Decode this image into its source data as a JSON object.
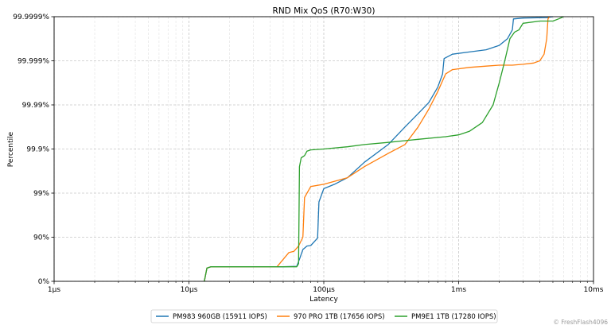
{
  "chart_data": {
    "type": "line",
    "title": "RND Mix QoS (R70:W30)",
    "xlabel": "Latency",
    "ylabel": "Percentile",
    "x_scale": "log",
    "x_unit": "seconds",
    "xlim": [
      1e-06,
      0.01
    ],
    "x_ticks": [
      {
        "value": 1e-06,
        "label": "1µs"
      },
      {
        "value": 1e-05,
        "label": "10µs"
      },
      {
        "value": 0.0001,
        "label": "100µs"
      },
      {
        "value": 0.001,
        "label": "1ms"
      },
      {
        "value": 0.01,
        "label": "10ms"
      }
    ],
    "y_scale": "nines",
    "ylim": [
      0,
      6
    ],
    "y_ticks": [
      {
        "value": 0,
        "label": "0%"
      },
      {
        "value": 1,
        "label": "90%"
      },
      {
        "value": 2,
        "label": "99%"
      },
      {
        "value": 3,
        "label": "99.9%"
      },
      {
        "value": 4,
        "label": "99.99%"
      },
      {
        "value": 5,
        "label": "99.999%"
      },
      {
        "value": 6,
        "label": "99.9999%"
      }
    ],
    "grid": true,
    "legend_position": "bottom-center",
    "series": [
      {
        "name": "PM983 960GB (15911 IOPS)",
        "color": "#1f77b4",
        "points": [
          [
            1.3e-05,
            0.0
          ],
          [
            1.36e-05,
            0.3
          ],
          [
            1.45e-05,
            0.33
          ],
          [
            2e-05,
            0.33
          ],
          [
            5e-05,
            0.33
          ],
          [
            6.3e-05,
            0.34
          ],
          [
            6.6e-05,
            0.5
          ],
          [
            7e-05,
            0.72
          ],
          [
            7.5e-05,
            0.8
          ],
          [
            8e-05,
            0.81
          ],
          [
            9e-05,
            0.98
          ],
          [
            9.2e-05,
            1.8
          ],
          [
            0.0001,
            2.1
          ],
          [
            0.00012,
            2.2
          ],
          [
            0.00015,
            2.35
          ],
          [
            0.0002,
            2.7
          ],
          [
            0.0003,
            3.1
          ],
          [
            0.0004,
            3.5
          ],
          [
            0.0005,
            3.8
          ],
          [
            0.0006,
            4.05
          ],
          [
            0.0007,
            4.4
          ],
          [
            0.00076,
            4.7
          ],
          [
            0.00078,
            5.05
          ],
          [
            0.0009,
            5.15
          ],
          [
            0.0012,
            5.2
          ],
          [
            0.0016,
            5.25
          ],
          [
            0.002,
            5.35
          ],
          [
            0.0023,
            5.5
          ],
          [
            0.0025,
            5.7
          ],
          [
            0.00255,
            5.95
          ],
          [
            0.003,
            5.97
          ],
          [
            0.0045,
            5.98
          ],
          [
            0.005,
            6.0
          ]
        ]
      },
      {
        "name": "970 PRO 1TB (17656 IOPS)",
        "color": "#ff7f0e",
        "points": [
          [
            1.3e-05,
            0.0
          ],
          [
            1.36e-05,
            0.3
          ],
          [
            1.45e-05,
            0.33
          ],
          [
            2e-05,
            0.33
          ],
          [
            4.5e-05,
            0.33
          ],
          [
            5e-05,
            0.5
          ],
          [
            5.5e-05,
            0.65
          ],
          [
            6e-05,
            0.68
          ],
          [
            6.5e-05,
            0.8
          ],
          [
            7e-05,
            1.0
          ],
          [
            7.2e-05,
            1.9
          ],
          [
            8e-05,
            2.15
          ],
          [
            0.0001,
            2.2
          ],
          [
            0.00015,
            2.35
          ],
          [
            0.0002,
            2.6
          ],
          [
            0.0003,
            2.9
          ],
          [
            0.0004,
            3.1
          ],
          [
            0.0005,
            3.5
          ],
          [
            0.0006,
            3.9
          ],
          [
            0.0007,
            4.3
          ],
          [
            0.0008,
            4.7
          ],
          [
            0.0009,
            4.8
          ],
          [
            0.0012,
            4.85
          ],
          [
            0.0016,
            4.88
          ],
          [
            0.002,
            4.9
          ],
          [
            0.0025,
            4.9
          ],
          [
            0.003,
            4.92
          ],
          [
            0.0036,
            4.95
          ],
          [
            0.004,
            5.0
          ],
          [
            0.0043,
            5.15
          ],
          [
            0.0045,
            5.5
          ],
          [
            0.0046,
            5.95
          ],
          [
            0.0047,
            6.0
          ]
        ]
      },
      {
        "name": "PM9E1 1TB (17280 IOPS)",
        "color": "#2ca02c",
        "points": [
          [
            1.3e-05,
            0.0
          ],
          [
            1.36e-05,
            0.3
          ],
          [
            1.45e-05,
            0.33
          ],
          [
            2e-05,
            0.33
          ],
          [
            6.3e-05,
            0.33
          ],
          [
            6.5e-05,
            0.4
          ],
          [
            6.6e-05,
            2.6
          ],
          [
            6.8e-05,
            2.8
          ],
          [
            7.2e-05,
            2.85
          ],
          [
            7.5e-05,
            2.95
          ],
          [
            8e-05,
            2.98
          ],
          [
            0.0001,
            3.0
          ],
          [
            0.00015,
            3.05
          ],
          [
            0.0002,
            3.1
          ],
          [
            0.0003,
            3.15
          ],
          [
            0.0005,
            3.22
          ],
          [
            0.0008,
            3.28
          ],
          [
            0.001,
            3.32
          ],
          [
            0.0012,
            3.4
          ],
          [
            0.0015,
            3.6
          ],
          [
            0.0018,
            4.0
          ],
          [
            0.002,
            4.5
          ],
          [
            0.0022,
            5.0
          ],
          [
            0.0024,
            5.5
          ],
          [
            0.0026,
            5.65
          ],
          [
            0.0028,
            5.7
          ],
          [
            0.003,
            5.85
          ],
          [
            0.004,
            5.9
          ],
          [
            0.005,
            5.9
          ],
          [
            0.0055,
            5.95
          ],
          [
            0.006,
            6.0
          ]
        ]
      }
    ]
  },
  "watermark": "© FreshFlash4096"
}
